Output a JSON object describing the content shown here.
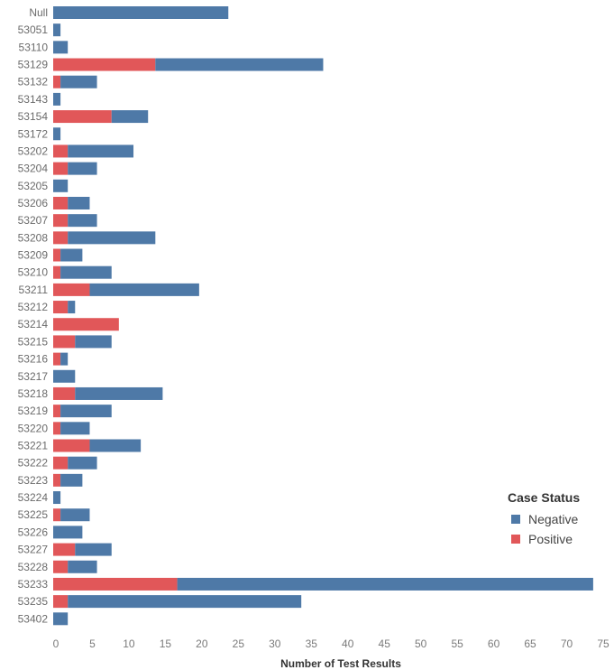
{
  "chart_data": {
    "type": "bar",
    "orientation": "horizontal",
    "stacked": true,
    "xlabel": "Number of Test Results",
    "xlim": [
      0,
      75
    ],
    "xticks": [
      0,
      5,
      10,
      15,
      20,
      25,
      30,
      35,
      40,
      45,
      50,
      55,
      60,
      65,
      70,
      75
    ],
    "grid": false,
    "legend_position": "bottom-right",
    "categories": [
      "Null",
      "53051",
      "53110",
      "53129",
      "53132",
      "53143",
      "53154",
      "53172",
      "53202",
      "53204",
      "53205",
      "53206",
      "53207",
      "53208",
      "53209",
      "53210",
      "53211",
      "53212",
      "53214",
      "53215",
      "53216",
      "53217",
      "53218",
      "53219",
      "53220",
      "53221",
      "53222",
      "53223",
      "53224",
      "53225",
      "53226",
      "53227",
      "53228",
      "53233",
      "53235",
      "53402"
    ],
    "series": [
      {
        "name": "Positive",
        "color": "#e15759",
        "values": [
          0,
          0,
          0,
          14,
          1,
          0,
          8,
          0,
          2,
          2,
          0,
          2,
          2,
          2,
          1,
          1,
          5,
          2,
          9,
          3,
          1,
          0,
          3,
          1,
          1,
          5,
          2,
          1,
          0,
          1,
          0,
          3,
          2,
          17,
          2,
          0
        ]
      },
      {
        "name": "Negative",
        "color": "#4e79a7",
        "values": [
          24,
          1,
          2,
          23,
          5,
          1,
          5,
          1,
          9,
          4,
          2,
          3,
          4,
          12,
          3,
          7,
          15,
          1,
          0,
          5,
          1,
          3,
          12,
          7,
          4,
          7,
          4,
          3,
          1,
          4,
          4,
          5,
          4,
          57,
          32,
          2
        ]
      }
    ],
    "legend": {
      "title": "Case Status",
      "items": [
        {
          "label": "Negative",
          "color": "#4e79a7"
        },
        {
          "label": "Positive",
          "color": "#e15759"
        }
      ]
    }
  }
}
